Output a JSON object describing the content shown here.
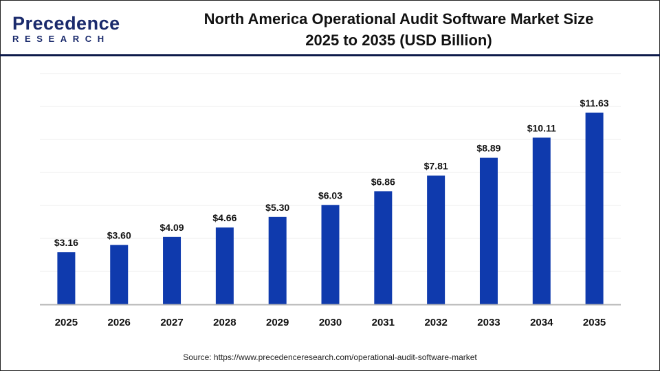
{
  "logo": {
    "top": "Precedence",
    "bottom": "RESEARCH"
  },
  "header": {
    "title_line1": "North America Operational Audit Software Market Size",
    "title_line2": "2025 to 2035 (USD Billion)"
  },
  "source": "Source: https://www.precedenceresearch.com/operational-audit-software-market",
  "chart_data": {
    "type": "bar",
    "title": "North America Operational Audit Software Market Size 2025 to 2035 (USD Billion)",
    "categories": [
      "2025",
      "2026",
      "2027",
      "2028",
      "2029",
      "2030",
      "2031",
      "2032",
      "2033",
      "2034",
      "2035"
    ],
    "values": [
      3.16,
      3.6,
      4.09,
      4.66,
      5.3,
      6.03,
      6.86,
      7.81,
      8.89,
      10.11,
      11.63
    ],
    "data_labels": [
      "$3.16",
      "$3.60",
      "$4.09",
      "$4.66",
      "$5.30",
      "$6.03",
      "$6.86",
      "$7.81",
      "$8.89",
      "$10.11",
      "$11.63"
    ],
    "ylim": [
      0,
      14
    ],
    "grid": true,
    "bar_color": "#0f3aad",
    "xlabel": "",
    "ylabel": ""
  }
}
